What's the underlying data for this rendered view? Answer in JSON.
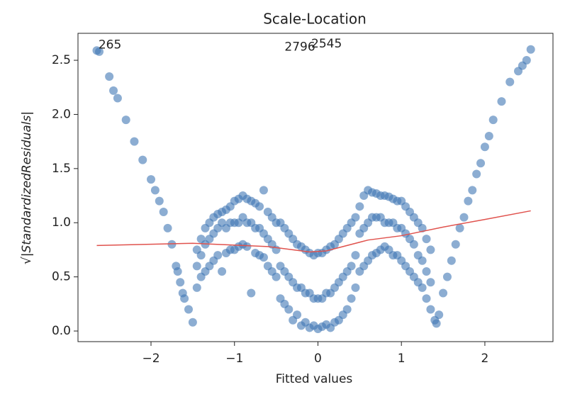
{
  "chart_data": {
    "type": "scatter",
    "title": "Scale-Location",
    "x_label": "Fitted values",
    "y_label": "√|StandardizedResiduals|",
    "xlim": [
      -2.875,
      2.816
    ],
    "ylim": [
      -0.098,
      2.749
    ],
    "xticks": [
      {
        "value": -2,
        "label": "−2"
      },
      {
        "value": -1,
        "label": "−1"
      },
      0,
      1,
      2
    ],
    "yticks": [
      {
        "value": 0,
        "label": "0.0"
      },
      0.5,
      {
        "value": 1,
        "label": "1.0"
      },
      1.5,
      {
        "value": 2,
        "label": "2.0"
      },
      2.5
    ],
    "series": [
      {
        "color": "#3f77b4",
        "x": [
          -2.65,
          -2.62,
          -2.5,
          -2.45,
          -2.4,
          -2.3,
          -2.2,
          -2.1,
          -2.0,
          -1.95,
          -1.9,
          -1.85,
          -1.8,
          -1.75,
          -1.7,
          -1.65,
          -1.6,
          -1.55,
          -1.5,
          -1.62,
          -1.68,
          -1.45,
          -1.4,
          -1.35,
          -1.3,
          -1.25,
          -1.2,
          -1.15,
          -1.1,
          -1.05,
          -1.0,
          -0.95,
          -0.9,
          -0.85,
          -0.8,
          -0.75,
          -0.7,
          -0.65,
          -0.6,
          -0.55,
          -0.5,
          -1.45,
          -1.4,
          -1.35,
          -1.3,
          -1.25,
          -1.2,
          -1.15,
          -1.1,
          -1.05,
          -1.0,
          -0.95,
          -0.9,
          -0.85,
          -0.8,
          -0.75,
          -0.7,
          -0.65,
          -0.6,
          -0.55,
          -0.5,
          -1.45,
          -1.4,
          -1.35,
          -1.3,
          -1.25,
          -1.2,
          -1.15,
          -1.1,
          -1.05,
          -1.0,
          -0.95,
          -0.9,
          -0.85,
          -0.8,
          -0.75,
          -0.7,
          -0.65,
          -0.6,
          -0.55,
          -0.5,
          -0.45,
          -0.4,
          -0.35,
          -0.3,
          -0.25,
          -0.2,
          -0.15,
          -0.1,
          -0.05,
          0,
          0.05,
          0.1,
          0.15,
          0.2,
          0.25,
          0.3,
          0.35,
          0.4,
          0.45,
          -0.45,
          -0.4,
          -0.35,
          -0.3,
          -0.25,
          -0.2,
          -0.15,
          -0.1,
          -0.05,
          0,
          0.05,
          0.1,
          0.15,
          0.2,
          0.25,
          0.3,
          0.35,
          0.4,
          0.45,
          -0.45,
          -0.4,
          -0.35,
          -0.3,
          -0.25,
          -0.2,
          -0.15,
          -0.1,
          -0.05,
          0,
          0.05,
          0.1,
          0.15,
          0.2,
          0.25,
          0.3,
          0.35,
          0.4,
          0.45,
          0.5,
          0.55,
          0.6,
          0.65,
          0.7,
          0.75,
          0.8,
          0.85,
          0.9,
          0.95,
          1.0,
          1.05,
          1.1,
          1.15,
          1.2,
          1.25,
          1.3,
          1.35,
          0.5,
          0.55,
          0.6,
          0.65,
          0.7,
          0.75,
          0.8,
          0.85,
          0.9,
          0.95,
          1.0,
          1.05,
          1.1,
          1.15,
          1.2,
          1.25,
          1.3,
          1.35,
          0.5,
          0.55,
          0.6,
          0.65,
          0.7,
          0.75,
          0.8,
          0.85,
          0.9,
          0.95,
          1.0,
          1.05,
          1.1,
          1.15,
          1.2,
          1.25,
          1.3,
          1.35,
          1.4,
          1.42,
          1.45,
          1.5,
          1.55,
          1.6,
          1.65,
          1.7,
          1.75,
          1.8,
          1.85,
          1.9,
          1.95,
          2.0,
          2.05,
          2.1,
          2.2,
          2.3,
          2.4,
          2.45,
          2.5,
          2.55
        ],
        "values": [
          2.59,
          2.58,
          2.35,
          2.22,
          2.15,
          1.95,
          1.75,
          1.58,
          1.4,
          1.3,
          1.2,
          1.1,
          0.95,
          0.8,
          0.6,
          0.45,
          0.3,
          0.2,
          0.08,
          0.35,
          0.55,
          0.75,
          0.85,
          0.95,
          1.0,
          1.05,
          1.08,
          1.1,
          1.12,
          1.15,
          1.2,
          1.22,
          1.25,
          1.22,
          1.2,
          1.18,
          1.15,
          1.3,
          1.1,
          1.05,
          1.0,
          0.4,
          0.5,
          0.55,
          0.6,
          0.65,
          0.7,
          0.55,
          0.72,
          0.75,
          0.75,
          0.78,
          0.8,
          0.78,
          0.35,
          0.72,
          0.7,
          0.68,
          0.6,
          0.55,
          0.5,
          0.6,
          0.7,
          0.8,
          0.85,
          0.9,
          0.95,
          1.0,
          0.95,
          1.0,
          1.0,
          1.0,
          1.05,
          1.0,
          1.0,
          0.95,
          0.95,
          0.9,
          0.85,
          0.8,
          0.75,
          1.0,
          0.95,
          0.9,
          0.85,
          0.8,
          0.78,
          0.75,
          0.72,
          0.7,
          0.72,
          0.72,
          0.75,
          0.78,
          0.8,
          0.85,
          0.9,
          0.95,
          1.0,
          1.05,
          0.3,
          0.25,
          0.2,
          0.1,
          0.15,
          0.05,
          0.08,
          0.03,
          0.05,
          0.02,
          0.04,
          0.06,
          0.03,
          0.08,
          0.1,
          0.15,
          0.2,
          0.3,
          0.4,
          0.6,
          0.55,
          0.5,
          0.45,
          0.4,
          0.4,
          0.35,
          0.35,
          0.3,
          0.3,
          0.3,
          0.35,
          0.35,
          0.4,
          0.45,
          0.5,
          0.55,
          0.6,
          0.7,
          1.15,
          1.25,
          1.3,
          1.28,
          1.27,
          1.25,
          1.25,
          1.24,
          1.22,
          1.2,
          1.2,
          1.15,
          1.1,
          1.05,
          1.0,
          0.95,
          0.85,
          0.75,
          0.55,
          0.6,
          0.65,
          0.7,
          0.72,
          0.75,
          0.78,
          0.75,
          0.7,
          0.7,
          0.65,
          0.6,
          0.55,
          0.5,
          0.45,
          0.4,
          0.3,
          0.2,
          0.9,
          0.95,
          1.0,
          1.05,
          1.05,
          1.05,
          1.0,
          1.0,
          1.0,
          0.95,
          0.95,
          0.9,
          0.85,
          0.8,
          0.7,
          0.65,
          0.55,
          0.45,
          0.1,
          0.07,
          0.15,
          0.35,
          0.5,
          0.65,
          0.8,
          0.95,
          1.05,
          1.2,
          1.3,
          1.45,
          1.55,
          1.7,
          1.8,
          1.95,
          2.12,
          2.3,
          2.4,
          2.45,
          2.5,
          2.6
        ]
      },
      {
        "type": "line",
        "color": "#e0524d",
        "x": [
          -2.65,
          -1.5,
          -0.6,
          -0.1,
          0.1,
          0.6,
          1.0,
          1.5,
          2.0,
          2.55
        ],
        "values": [
          0.79,
          0.81,
          0.78,
          0.73,
          0.74,
          0.84,
          0.88,
          0.96,
          1.03,
          1.11
        ]
      }
    ],
    "annotations": [
      {
        "text": "265",
        "x": -2.63,
        "y": 2.64
      },
      {
        "text": "2796",
        "x": -0.4,
        "y": 2.62
      },
      {
        "text": "2545",
        "x": -0.08,
        "y": 2.65
      }
    ]
  }
}
